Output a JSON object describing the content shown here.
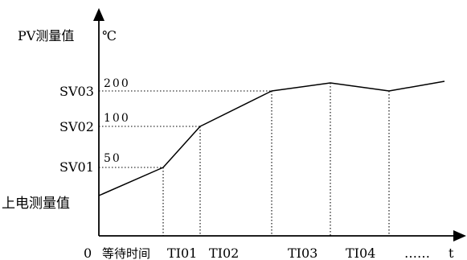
{
  "diagram": {
    "y_axis_label": "PV测量值",
    "y_unit": "℃",
    "x_axis_label": "t",
    "origin": "0",
    "y_levels": [
      {
        "name": "SV03",
        "value_label": "200"
      },
      {
        "name": "SV02",
        "value_label": "100"
      },
      {
        "name": "SV01",
        "value_label": "50"
      },
      {
        "name": "上电测量值",
        "value_label": ""
      }
    ],
    "x_segments": [
      "等待时间",
      "TI01",
      "TI02",
      "TI03",
      "TI04",
      "……"
    ]
  }
}
